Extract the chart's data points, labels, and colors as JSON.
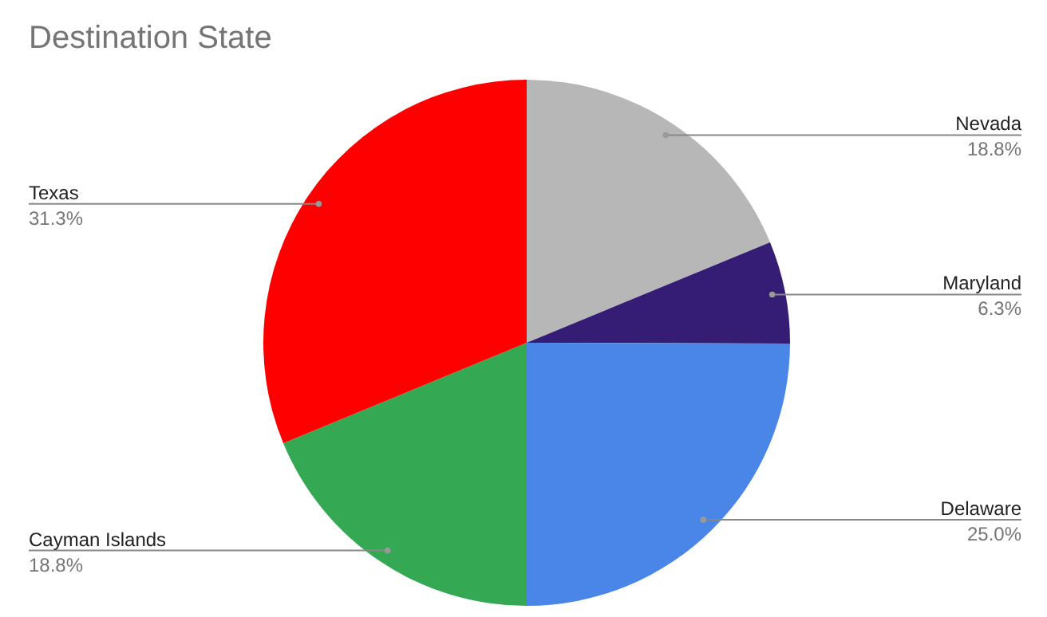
{
  "chart_data": {
    "type": "pie",
    "title": "Destination State",
    "categories": [
      "Nevada",
      "Maryland",
      "Delaware",
      "Cayman Islands",
      "Texas"
    ],
    "values": [
      18.8,
      6.3,
      25.0,
      18.8,
      31.3
    ],
    "colors": [
      "#b7b7b7",
      "#351c75",
      "#4a86e8",
      "#34a853",
      "#ff0000"
    ],
    "value_labels": [
      "18.8%",
      "6.3%",
      "25.0%",
      "18.8%",
      "31.3%"
    ]
  }
}
